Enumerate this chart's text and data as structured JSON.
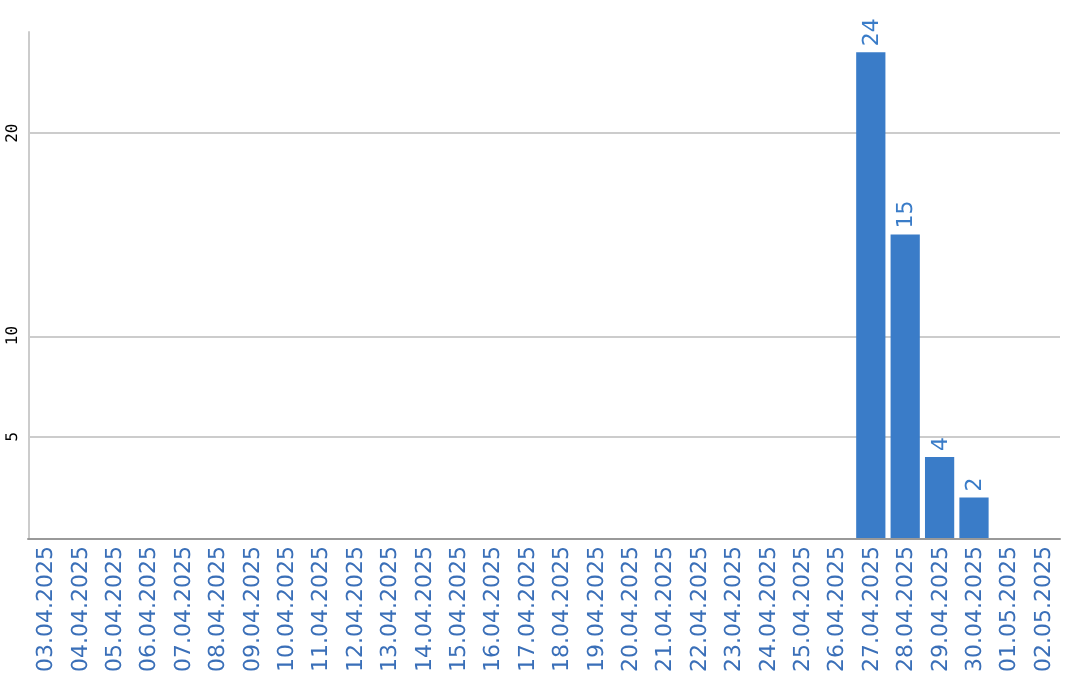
{
  "chart_data": {
    "type": "bar",
    "categories": [
      "03.04.2025",
      "04.04.2025",
      "05.04.2025",
      "06.04.2025",
      "07.04.2025",
      "08.04.2025",
      "09.04.2025",
      "10.04.2025",
      "11.04.2025",
      "12.04.2025",
      "13.04.2025",
      "14.04.2025",
      "15.04.2025",
      "16.04.2025",
      "17.04.2025",
      "18.04.2025",
      "19.04.2025",
      "20.04.2025",
      "21.04.2025",
      "22.04.2025",
      "23.04.2025",
      "24.04.2025",
      "25.04.2025",
      "26.04.2025",
      "27.04.2025",
      "28.04.2025",
      "29.04.2025",
      "30.04.2025",
      "01.05.2025",
      "02.05.2025"
    ],
    "values": [
      0,
      0,
      0,
      0,
      0,
      0,
      0,
      0,
      0,
      0,
      0,
      0,
      0,
      0,
      0,
      0,
      0,
      0,
      0,
      0,
      0,
      0,
      0,
      0,
      24,
      15,
      4,
      2,
      0,
      0
    ],
    "value_labels": [
      null,
      null,
      null,
      null,
      null,
      null,
      null,
      null,
      null,
      null,
      null,
      null,
      null,
      null,
      null,
      null,
      null,
      null,
      null,
      null,
      null,
      null,
      null,
      null,
      "24",
      "15",
      "4",
      "2",
      null,
      null
    ],
    "color": "#3a7cc8",
    "ylim": [
      0,
      25
    ],
    "yticks": [
      5,
      10,
      20
    ],
    "grid": "y"
  }
}
